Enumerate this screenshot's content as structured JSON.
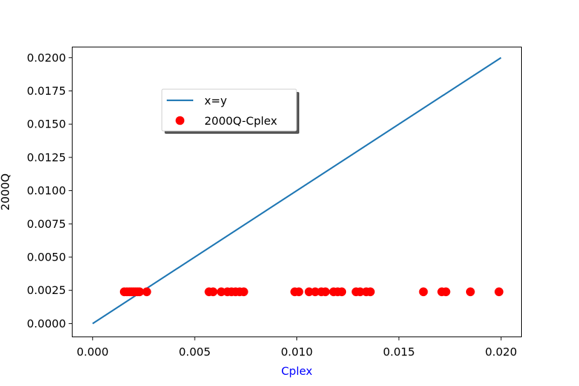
{
  "chart_data": {
    "type": "scatter",
    "title": "",
    "xlabel": "Cplex",
    "ylabel": "2000Q",
    "xlabel_color": "#0000ff",
    "xlim": [
      -0.001,
      0.021
    ],
    "ylim": [
      -0.001,
      0.0208
    ],
    "x_ticks": [
      0.0,
      0.005,
      0.01,
      0.015,
      0.02
    ],
    "x_tick_labels": [
      "0.000",
      "0.005",
      "0.010",
      "0.015",
      "0.020"
    ],
    "y_ticks": [
      0.0,
      0.0025,
      0.005,
      0.0075,
      0.01,
      0.0125,
      0.015,
      0.0175,
      0.02
    ],
    "y_tick_labels": [
      "0.0000",
      "0.0025",
      "0.0050",
      "0.0075",
      "0.0100",
      "0.0125",
      "0.0150",
      "0.0175",
      "0.0200"
    ],
    "grid": false,
    "legend_position": "upper-center",
    "series": [
      {
        "name": "x=y",
        "kind": "line",
        "color": "#1f77b4",
        "x": [
          0.0,
          0.02
        ],
        "y": [
          0.0,
          0.02
        ]
      },
      {
        "name": "2000Q-Cplex",
        "kind": "scatter",
        "color": "#ff0000",
        "x": [
          0.00155,
          0.00168,
          0.0018,
          0.0019,
          0.002,
          0.0021,
          0.0022,
          0.0023,
          0.00265,
          0.0057,
          0.0059,
          0.0063,
          0.0066,
          0.0068,
          0.007,
          0.0072,
          0.0074,
          0.0099,
          0.0101,
          0.0106,
          0.0109,
          0.0112,
          0.0114,
          0.0118,
          0.012,
          0.0122,
          0.0129,
          0.0131,
          0.0134,
          0.0136,
          0.0162,
          0.0171,
          0.0173,
          0.0185,
          0.0199
        ],
        "y": [
          0.00239,
          0.00239,
          0.00239,
          0.00239,
          0.00239,
          0.00239,
          0.00239,
          0.00239,
          0.00239,
          0.00239,
          0.00239,
          0.00239,
          0.00239,
          0.00239,
          0.00239,
          0.00239,
          0.00239,
          0.00239,
          0.00239,
          0.00239,
          0.00239,
          0.00239,
          0.00239,
          0.00239,
          0.00239,
          0.00239,
          0.00239,
          0.00239,
          0.00239,
          0.00239,
          0.00239,
          0.00239,
          0.00239,
          0.00239,
          0.00239
        ]
      }
    ]
  }
}
